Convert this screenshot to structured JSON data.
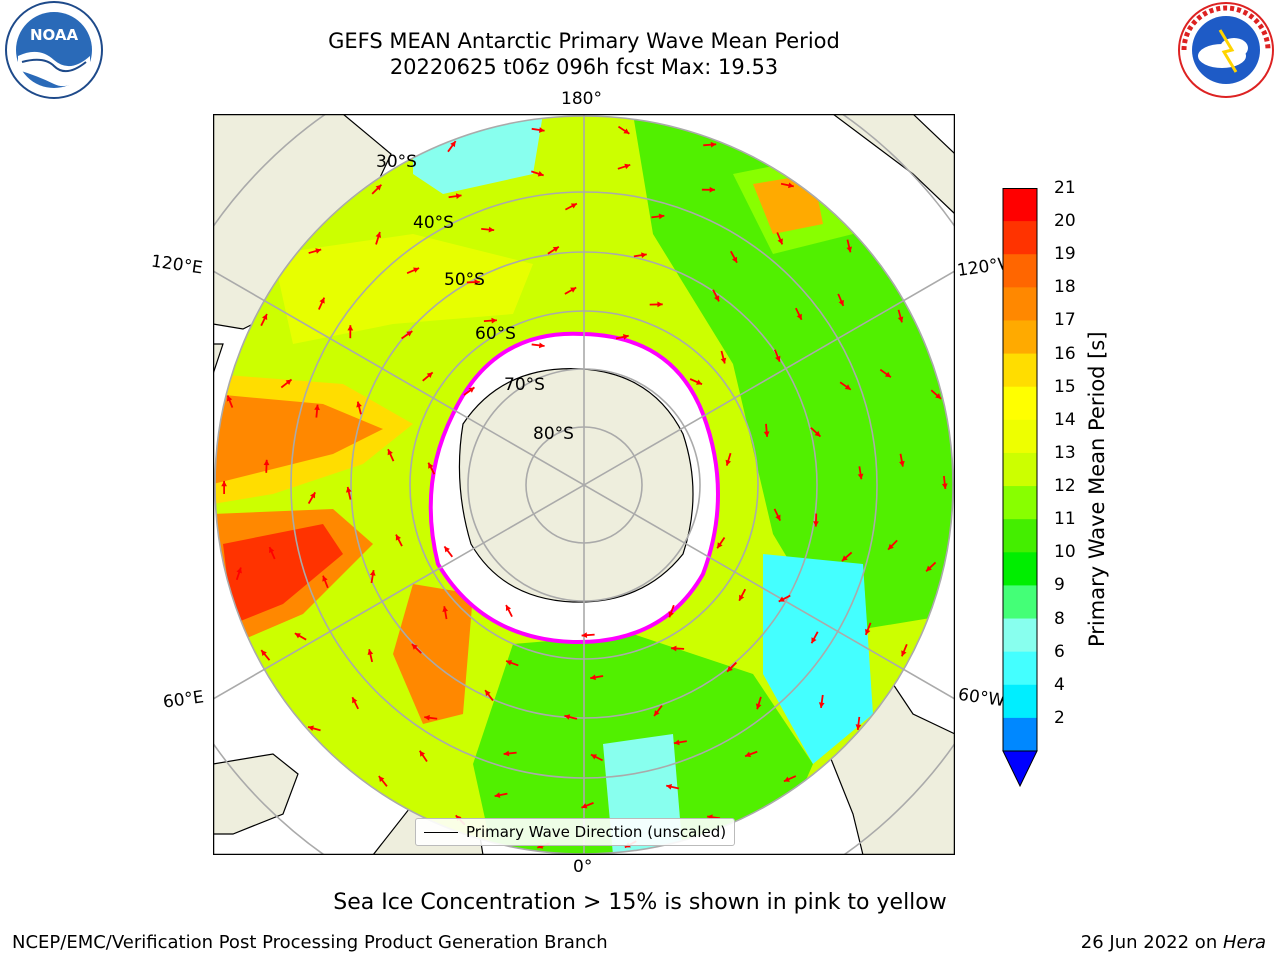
{
  "title": {
    "line1": "GEFS MEAN Antarctic Primary Wave Mean Period",
    "line2": "20220625 t06z 096h fcst   Max: 19.53"
  },
  "logos": {
    "noara": "NOAA",
    "nws_text": "NATIONAL WEATHER SERVICE"
  },
  "map": {
    "longitude_labels": {
      "top": "180°",
      "bottom": "0°",
      "left_upper": "120°E",
      "right_upper": "120°W",
      "left_lower": "60°E",
      "right_lower": "60°W"
    },
    "latitude_labels": [
      "30°S",
      "40°S",
      "50°S",
      "60°S",
      "70°S",
      "80°S"
    ],
    "legend": "Primary Wave Direction (unscaled)",
    "arrow_color": "#ff0000",
    "sea_ice_colors": [
      "#ff00ff",
      "#ffaa00",
      "#ffff00"
    ]
  },
  "colorbar": {
    "label": "Primary Wave Mean Period [s]",
    "ticks": [
      "21",
      "20",
      "19",
      "18",
      "17",
      "16",
      "15",
      "14",
      "13",
      "12",
      "11",
      "10",
      "9",
      "8",
      "6",
      "4",
      "2"
    ],
    "colors_top_to_bottom": [
      "#ff0000",
      "#ff3300",
      "#ff6600",
      "#ff8800",
      "#ffaa00",
      "#ffdd00",
      "#ffff00",
      "#eeff00",
      "#ccff00",
      "#88ff00",
      "#44ee00",
      "#00ee00",
      "#44ff77",
      "#88ffee",
      "#44ffff",
      "#00eeff",
      "#0088ff",
      "#0000ff"
    ]
  },
  "note": "Sea Ice Concentration > 15% is shown in pink to yellow",
  "footer": {
    "left": "NCEP/EMC/Verification Post Processing Product Generation Branch",
    "right_prefix": "26 Jun 2022 on ",
    "right_host": "Hera"
  }
}
